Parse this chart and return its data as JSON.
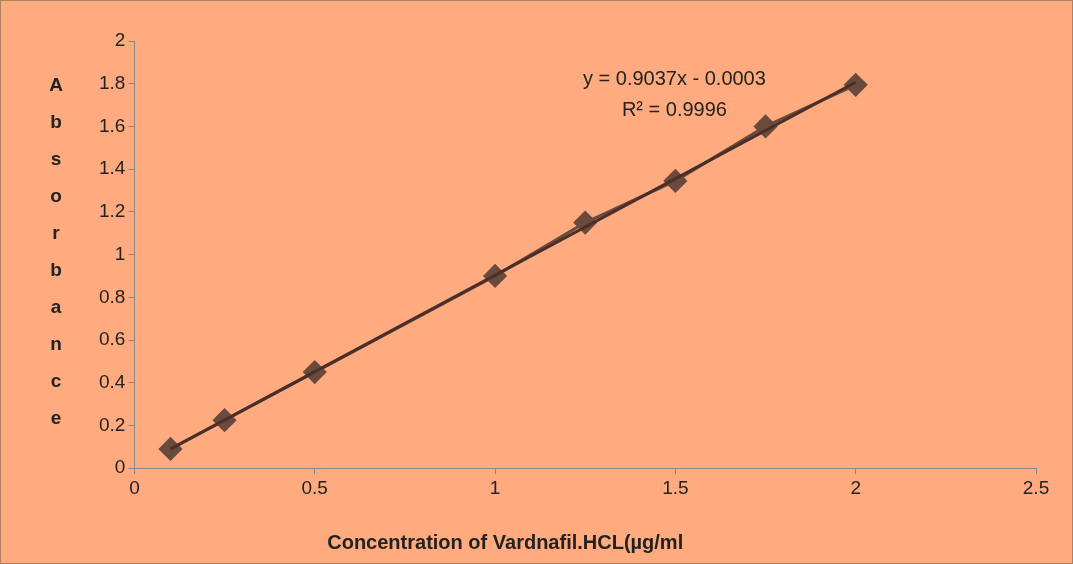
{
  "chart_data": {
    "type": "line",
    "xlabel": "Concentration of Vardnafil.HCL(µg/ml",
    "ylabel": "Absorbance",
    "annotations": [
      "y = 0.9037x - 0.0003",
      "R² = 0.9996"
    ],
    "series": [
      {
        "color": "#6b4a3e",
        "marker": "diamond",
        "x": [
          0.1,
          0.25,
          0.5,
          1,
          1.25,
          1.5,
          1.75,
          2
        ],
        "values": [
          0.09,
          0.225,
          0.45,
          0.9,
          1.15,
          1.345,
          1.6,
          1.795
        ]
      },
      {
        "color": "#4a2f28",
        "marker": "none",
        "x": [
          0.1,
          2
        ],
        "values": [
          0.09,
          1.807
        ]
      }
    ],
    "xlim": [
      0,
      2.5
    ],
    "xticks": [
      0,
      0.5,
      1,
      1.5,
      2,
      2.5
    ],
    "ylim": [
      0,
      2
    ],
    "yticks": [
      0,
      0.2,
      0.4,
      0.6,
      0.8,
      1,
      1.2,
      1.4,
      1.6,
      1.8,
      2
    ],
    "grid": false,
    "legend": false
  }
}
